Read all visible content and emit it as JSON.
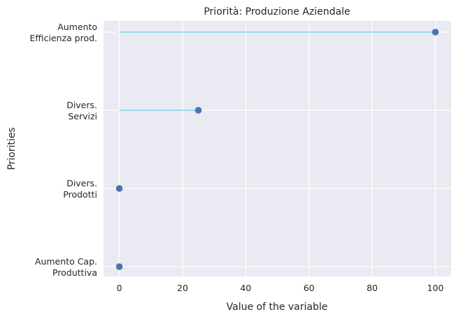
{
  "chart_data": {
    "type": "lollipop",
    "title": "Priorità: Produzione Aziendale",
    "xlabel": "Value of the variable",
    "ylabel": "Priorities",
    "xlim": [
      -5,
      105
    ],
    "xticks": [
      "0",
      "20",
      "40",
      "60",
      "80",
      "100"
    ],
    "grid": true,
    "categories": [
      [
        "Aumento",
        "Efficienza prod."
      ],
      [
        "Divers.",
        "Servizi"
      ],
      [
        "Divers.",
        "Prodotti"
      ],
      [
        "Aumento Cap.",
        "Produttiva"
      ]
    ],
    "values": [
      100,
      25,
      0,
      0
    ],
    "colors": {
      "background": "#eaeaf2",
      "grid": "#ffffff",
      "stem": "#87ceeb",
      "marker": "#4c72b0"
    }
  }
}
